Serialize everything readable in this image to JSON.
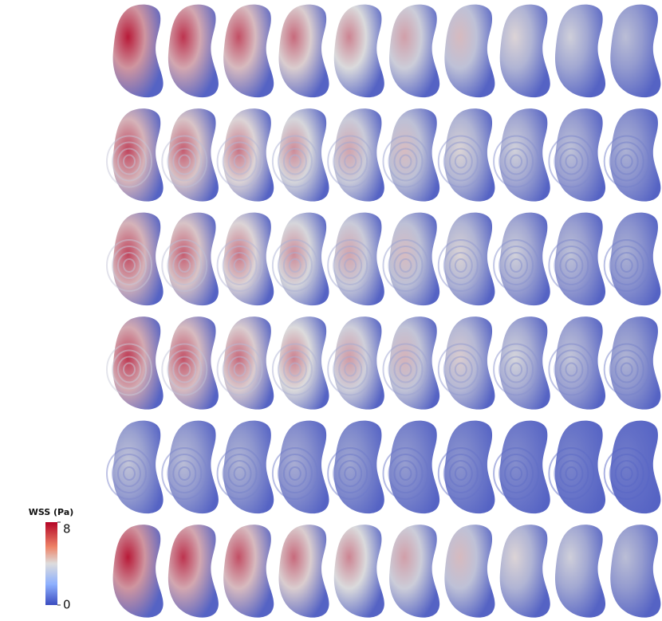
{
  "colorbar": {
    "title": "WSS (Pa)",
    "range": [
      0,
      8
    ],
    "ticks": [
      0,
      8
    ]
  }
}
